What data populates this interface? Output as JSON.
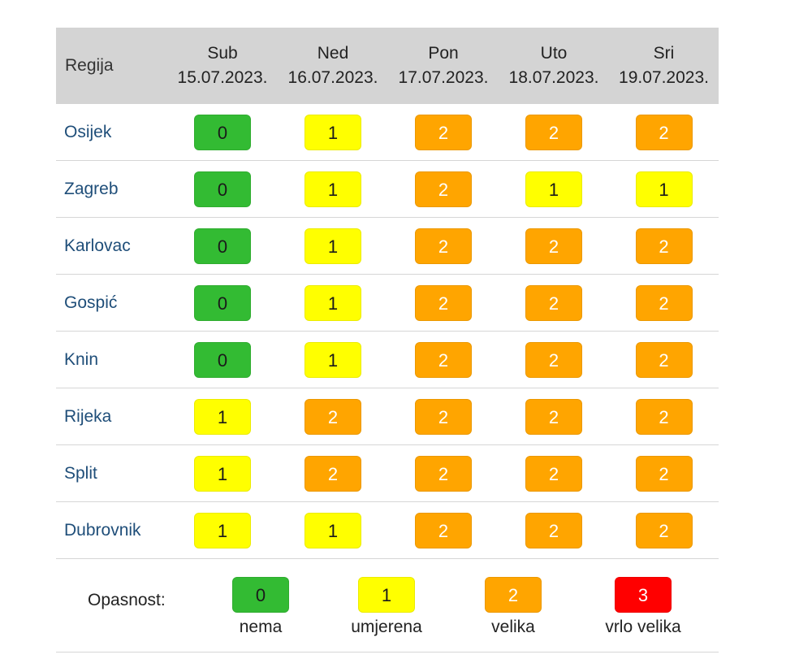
{
  "table": {
    "region_header": "Regija",
    "days": [
      {
        "day": "Sub",
        "date": "15.07.2023."
      },
      {
        "day": "Ned",
        "date": "16.07.2023."
      },
      {
        "day": "Pon",
        "date": "17.07.2023."
      },
      {
        "day": "Uto",
        "date": "18.07.2023."
      },
      {
        "day": "Sri",
        "date": "19.07.2023."
      }
    ],
    "rows": [
      {
        "region": "Osijek",
        "levels": [
          "0",
          "1",
          "2",
          "2",
          "2"
        ]
      },
      {
        "region": "Zagreb",
        "levels": [
          "0",
          "1",
          "2",
          "1",
          "1"
        ]
      },
      {
        "region": "Karlovac",
        "levels": [
          "0",
          "1",
          "2",
          "2",
          "2"
        ]
      },
      {
        "region": "Gospić",
        "levels": [
          "0",
          "1",
          "2",
          "2",
          "2"
        ]
      },
      {
        "region": "Knin",
        "levels": [
          "0",
          "1",
          "2",
          "2",
          "2"
        ]
      },
      {
        "region": "Rijeka",
        "levels": [
          "1",
          "2",
          "2",
          "2",
          "2"
        ]
      },
      {
        "region": "Split",
        "levels": [
          "1",
          "2",
          "2",
          "2",
          "2"
        ]
      },
      {
        "region": "Dubrovnik",
        "levels": [
          "1",
          "1",
          "2",
          "2",
          "2"
        ]
      }
    ]
  },
  "legend": {
    "label": "Opasnost:",
    "items": [
      {
        "level": "0",
        "text": "nema"
      },
      {
        "level": "1",
        "text": "umjerena"
      },
      {
        "level": "2",
        "text": "velika"
      },
      {
        "level": "3",
        "text": "vrlo velika"
      }
    ]
  },
  "colors": {
    "level_0": "#33bb33",
    "level_1": "#ffff00",
    "level_2": "#ffa500",
    "level_3": "#ff0000",
    "header_bg": "#d4d4d4",
    "region_text": "#1f4e79"
  }
}
